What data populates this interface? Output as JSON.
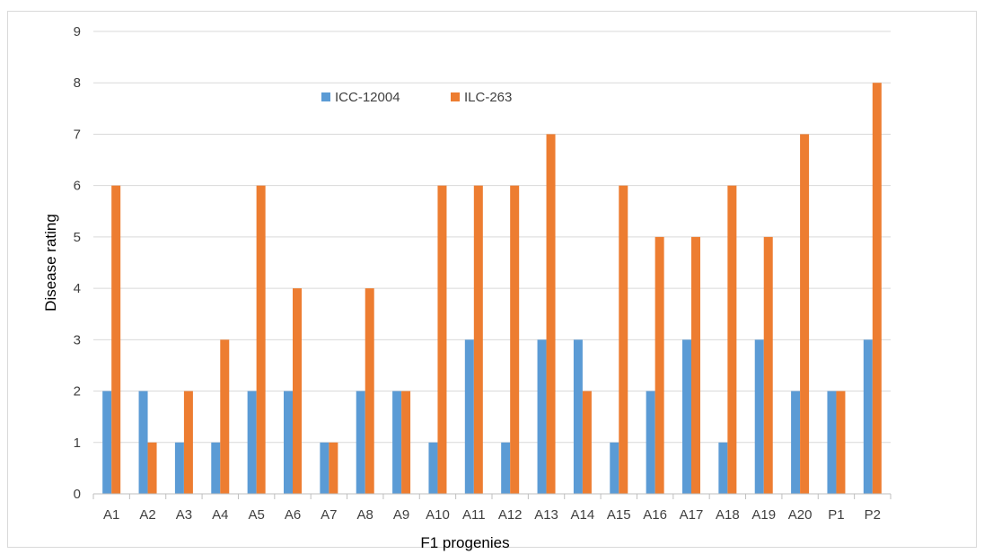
{
  "chart_data": {
    "type": "bar",
    "title": "",
    "xlabel": "F1 progenies",
    "ylabel": "Disease rating",
    "ylim": [
      0,
      9
    ],
    "yticks": [
      "0",
      "1",
      "2",
      "3",
      "4",
      "5",
      "6",
      "7",
      "8",
      "9"
    ],
    "grid": true,
    "legend_position": "top-center",
    "categories": [
      "A1",
      "A2",
      "A3",
      "A4",
      "A5",
      "A6",
      "A7",
      "A8",
      "A9",
      "A10",
      "A11",
      "A12",
      "A13",
      "A14",
      "A15",
      "A16",
      "A17",
      "A18",
      "A19",
      "A20",
      "P1",
      "P2"
    ],
    "series": [
      {
        "name": "ICC-12004",
        "color": "#5B9BD5",
        "values": [
          2,
          2,
          1,
          1,
          2,
          2,
          1,
          2,
          2,
          1,
          3,
          1,
          3,
          3,
          1,
          2,
          3,
          1,
          3,
          2,
          2,
          3
        ]
      },
      {
        "name": "ILC-263",
        "color": "#ED7D31",
        "values": [
          6,
          1,
          2,
          3,
          6,
          4,
          1,
          4,
          2,
          6,
          6,
          6,
          7,
          2,
          6,
          5,
          5,
          6,
          5,
          7,
          2,
          8
        ]
      }
    ]
  }
}
